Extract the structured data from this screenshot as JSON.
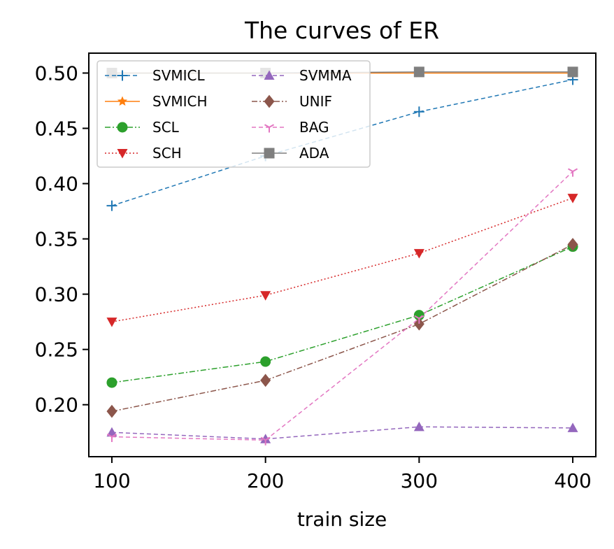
{
  "chart_data": {
    "type": "line",
    "title": "The curves of ER",
    "xlabel": "train size",
    "ylabel": "",
    "x": [
      100,
      200,
      300,
      400
    ],
    "xlim": [
      85,
      415
    ],
    "ylim": [
      0.153,
      0.518
    ],
    "xticks": [
      100,
      200,
      300,
      400
    ],
    "yticks": [
      0.2,
      0.25,
      0.3,
      0.35,
      0.4,
      0.45,
      0.5
    ],
    "ytick_labels": [
      "0.20",
      "0.25",
      "0.30",
      "0.35",
      "0.40",
      "0.45",
      "0.50"
    ],
    "grid": false,
    "legend_position": "top-left",
    "series": [
      {
        "name": "SVMICL",
        "values": [
          0.38,
          0.425,
          0.465,
          0.494
        ],
        "color": "#1f77b4",
        "marker": "plus",
        "dash": "6,4"
      },
      {
        "name": "SVMICH",
        "values": [
          0.5,
          0.5,
          0.5,
          0.5
        ],
        "color": "#ff7f0e",
        "marker": "star",
        "dash": ""
      },
      {
        "name": "SCL",
        "values": [
          0.22,
          0.239,
          0.281,
          0.343
        ],
        "color": "#2ca02c",
        "marker": "circle",
        "dash": "8,3,2,3"
      },
      {
        "name": "SCH",
        "values": [
          0.275,
          0.299,
          0.337,
          0.387
        ],
        "color": "#d62728",
        "marker": "triangle-down",
        "dash": "2,3"
      },
      {
        "name": "SVMMA",
        "values": [
          0.175,
          0.169,
          0.18,
          0.179
        ],
        "color": "#9467bd",
        "marker": "triangle-up",
        "dash": "6,4"
      },
      {
        "name": "UNIF",
        "values": [
          0.194,
          0.222,
          0.273,
          0.345
        ],
        "color": "#8c564b",
        "marker": "diamond",
        "dash": "8,3,2,3"
      },
      {
        "name": "BAG",
        "values": [
          0.171,
          0.168,
          0.278,
          0.411
        ],
        "color": "#e377c2",
        "marker": "tri",
        "dash": "6,4"
      },
      {
        "name": "ADA",
        "values": [
          0.5,
          0.5,
          0.501,
          0.501
        ],
        "color": "#7f7f7f",
        "marker": "square",
        "dash": ""
      }
    ]
  }
}
